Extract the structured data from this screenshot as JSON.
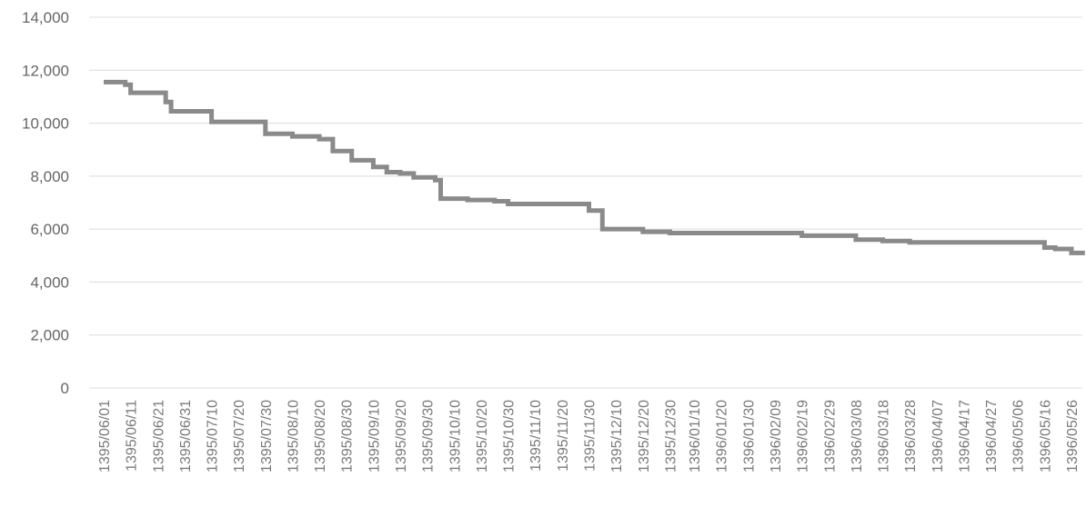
{
  "chart_data": {
    "type": "line",
    "title": "",
    "xlabel": "",
    "ylabel": "",
    "ylim": [
      0,
      14000
    ],
    "y_ticks": [
      "14,000",
      "12,000",
      "10,000",
      "8,000",
      "6,000",
      "4,000",
      "2,000",
      "0"
    ],
    "y_tick_values": [
      14000,
      12000,
      10000,
      8000,
      6000,
      4000,
      2000,
      0
    ],
    "x_tick_labels": [
      "1395/06/01",
      "1395/06/11",
      "1395/06/21",
      "1395/06/31",
      "1395/07/10",
      "1395/07/20",
      "1395/07/30",
      "1395/08/10",
      "1395/08/20",
      "1395/08/30",
      "1395/09/10",
      "1395/09/20",
      "1395/09/30",
      "1395/10/10",
      "1395/10/20",
      "1395/10/30",
      "1395/11/10",
      "1395/11/20",
      "1395/11/30",
      "1395/12/10",
      "1395/12/20",
      "1395/12/30",
      "1396/01/10",
      "1396/01/20",
      "1396/01/30",
      "1396/02/09",
      "1396/02/19",
      "1396/02/29",
      "1396/03/08",
      "1396/03/18",
      "1396/03/28",
      "1396/04/07",
      "1396/04/17",
      "1396/04/27",
      "1396/05/06",
      "1396/05/16",
      "1396/05/26"
    ],
    "grid": true,
    "legend": "none",
    "line_color": "#8a8a8a",
    "series": [
      {
        "x": [
          "1395/06/01",
          "1395/06/06",
          "1395/06/09",
          "1395/06/11",
          "1395/06/16",
          "1395/06/21",
          "1395/06/24",
          "1395/06/26",
          "1395/06/31",
          "1395/07/05",
          "1395/07/10",
          "1395/07/20",
          "1395/07/28",
          "1395/07/30",
          "1395/08/05",
          "1395/08/10",
          "1395/08/15",
          "1395/08/20",
          "1395/08/23",
          "1395/08/25",
          "1395/08/30",
          "1395/09/02",
          "1395/09/05",
          "1395/09/10",
          "1395/09/13",
          "1395/09/15",
          "1395/09/20",
          "1395/09/25",
          "1395/09/30",
          "1395/10/03",
          "1395/10/05",
          "1395/10/10",
          "1395/10/15",
          "1395/10/20",
          "1395/10/25",
          "1395/10/30",
          "1395/11/05",
          "1395/11/10",
          "1395/11/20",
          "1395/11/26",
          "1395/11/30",
          "1395/12/03",
          "1395/12/05",
          "1395/12/10",
          "1395/12/15",
          "1395/12/20",
          "1395/12/30",
          "1396/01/10",
          "1396/01/20",
          "1396/01/30",
          "1396/02/09",
          "1396/02/12",
          "1396/02/19",
          "1396/02/29",
          "1396/03/03",
          "1396/03/08",
          "1396/03/11",
          "1396/03/18",
          "1396/03/28",
          "1396/04/07",
          "1396/04/17",
          "1396/04/27",
          "1396/05/06",
          "1396/05/11",
          "1396/05/16",
          "1396/05/20",
          "1396/05/26",
          "1396/05/31"
        ],
        "values": [
          11550,
          11550,
          11450,
          11150,
          11150,
          11150,
          10800,
          10450,
          10450,
          10450,
          10050,
          10050,
          10050,
          9600,
          9600,
          9500,
          9500,
          9400,
          9400,
          8950,
          8950,
          8600,
          8600,
          8350,
          8350,
          8150,
          8100,
          7950,
          7950,
          7850,
          7150,
          7150,
          7100,
          7100,
          7050,
          6950,
          6950,
          6950,
          6950,
          6950,
          6700,
          6700,
          6000,
          6000,
          6000,
          5900,
          5850,
          5850,
          5850,
          5850,
          5850,
          5850,
          5750,
          5750,
          5750,
          5600,
          5600,
          5550,
          5500,
          5500,
          5500,
          5500,
          5500,
          5500,
          5300,
          5250,
          5100,
          5100
        ]
      }
    ]
  }
}
